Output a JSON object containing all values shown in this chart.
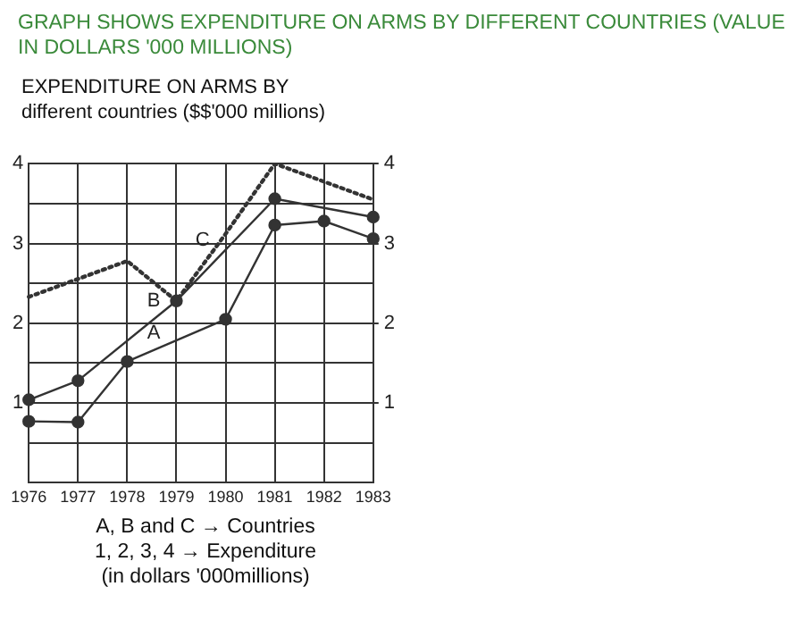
{
  "chart_data": {
    "type": "line",
    "title": "GRAPH SHOWS EXPENDITURE ON ARMS BY DIFFERENT COUNTRIES (VALUE IN DOLLARS '000 MILLIONS)",
    "subtitle": "EXPENDITURE ON ARMS BY different countries ($$'000 millions)",
    "categories": [
      "1976",
      "1977",
      "1978",
      "1979",
      "1980",
      "1981",
      "1982",
      "1983"
    ],
    "series": [
      {
        "color": "#333333",
        "marker": "circle",
        "line_style": "solid",
        "values": [
          0.77,
          0.76,
          1.52,
          null,
          2.05,
          3.23,
          3.28,
          3.06
        ]
      },
      {
        "color": "#333333",
        "marker": "circle",
        "line_style": "solid",
        "values": [
          1.04,
          1.28,
          null,
          2.28,
          null,
          3.56,
          null,
          3.33
        ]
      },
      {
        "color": "#333333",
        "marker": "none",
        "line_style": "dotted",
        "values": [
          2.33,
          null,
          2.78,
          2.28,
          3.12,
          4.0,
          null,
          3.55
        ]
      }
    ],
    "ylim": [
      0,
      4
    ],
    "yticks": [
      {
        "value": 0.5,
        "label": null
      },
      1,
      {
        "value": 1.5,
        "label": null
      },
      2,
      {
        "value": 2.5,
        "label": null
      },
      3,
      {
        "value": 3.5,
        "label": null
      },
      4
    ],
    "y2lim": [
      0,
      4
    ],
    "y2ticks": [
      1,
      2,
      3,
      4
    ],
    "grid": true,
    "legend": false,
    "annotations": [
      {
        "text": "A",
        "x": "1979",
        "y": 1.87
      },
      {
        "text": "B",
        "x": "1979",
        "y": 2.28
      },
      {
        "text": "C",
        "x": "1980",
        "y": 3.04
      },
      "A, B and C → Countries",
      "1, 2, 3, 4 → Expenditure",
      "(in dollars  '000millions)"
    ]
  }
}
